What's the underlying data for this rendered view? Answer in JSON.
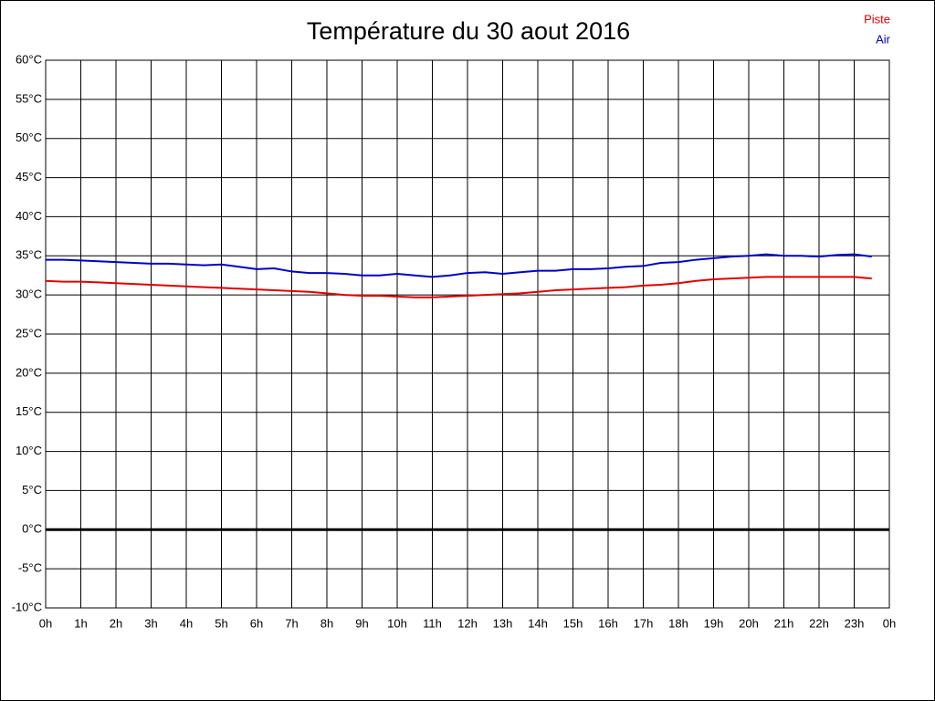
{
  "chart_data": {
    "type": "line",
    "title": "Température du 30 aout 2016",
    "x": [
      0,
      0.5,
      1,
      1.5,
      2,
      2.5,
      3,
      3.5,
      4,
      4.5,
      5,
      5.5,
      6,
      6.5,
      7,
      7.5,
      8,
      8.5,
      9,
      9.5,
      10,
      10.5,
      11,
      11.5,
      12,
      12.5,
      13,
      13.5,
      14,
      14.5,
      15,
      15.5,
      16,
      16.5,
      17,
      17.5,
      18,
      18.5,
      19,
      19.5,
      20,
      20.5,
      21,
      21.5,
      22,
      22.5,
      23,
      23.5
    ],
    "series": [
      {
        "name": "Piste",
        "color": "#e00000",
        "values": [
          31.8,
          31.7,
          31.7,
          31.6,
          31.5,
          31.4,
          31.3,
          31.2,
          31.1,
          31.0,
          30.9,
          30.8,
          30.7,
          30.6,
          30.5,
          30.4,
          30.2,
          30.0,
          29.9,
          29.9,
          29.8,
          29.7,
          29.7,
          29.8,
          29.9,
          30.0,
          30.1,
          30.2,
          30.4,
          30.6,
          30.7,
          30.8,
          30.9,
          31.0,
          31.2,
          31.3,
          31.5,
          31.8,
          32.0,
          32.1,
          32.2,
          32.3,
          32.3,
          32.3,
          32.3,
          32.3,
          32.3,
          32.1
        ]
      },
      {
        "name": "Air",
        "color": "#0000c8",
        "values": [
          34.5,
          34.5,
          34.4,
          34.3,
          34.2,
          34.1,
          34.0,
          34.0,
          33.9,
          33.8,
          33.9,
          33.6,
          33.3,
          33.4,
          33.0,
          32.8,
          32.8,
          32.7,
          32.5,
          32.5,
          32.7,
          32.5,
          32.3,
          32.5,
          32.8,
          32.9,
          32.7,
          32.9,
          33.1,
          33.1,
          33.3,
          33.3,
          33.4,
          33.6,
          33.7,
          34.1,
          34.2,
          34.5,
          34.7,
          34.9,
          35.0,
          35.2,
          35.0,
          35.0,
          34.9,
          35.1,
          35.2,
          34.9
        ]
      }
    ],
    "xlim": [
      0,
      24
    ],
    "xticks": [
      {
        "value": 0,
        "label": "0h"
      },
      {
        "value": 1,
        "label": "1h"
      },
      {
        "value": 2,
        "label": "2h"
      },
      {
        "value": 3,
        "label": "3h"
      },
      {
        "value": 4,
        "label": "4h"
      },
      {
        "value": 5,
        "label": "5h"
      },
      {
        "value": 6,
        "label": "6h"
      },
      {
        "value": 7,
        "label": "7h"
      },
      {
        "value": 8,
        "label": "8h"
      },
      {
        "value": 9,
        "label": "9h"
      },
      {
        "value": 10,
        "label": "10h"
      },
      {
        "value": 11,
        "label": "11h"
      },
      {
        "value": 12,
        "label": "12h"
      },
      {
        "value": 13,
        "label": "13h"
      },
      {
        "value": 14,
        "label": "14h"
      },
      {
        "value": 15,
        "label": "15h"
      },
      {
        "value": 16,
        "label": "16h"
      },
      {
        "value": 17,
        "label": "17h"
      },
      {
        "value": 18,
        "label": "18h"
      },
      {
        "value": 19,
        "label": "19h"
      },
      {
        "value": 20,
        "label": "20h"
      },
      {
        "value": 21,
        "label": "21h"
      },
      {
        "value": 22,
        "label": "22h"
      },
      {
        "value": 23,
        "label": "23h"
      },
      {
        "value": 24,
        "label": "0h"
      }
    ],
    "ylim": [
      -10,
      60
    ],
    "yticks": [
      {
        "value": -10,
        "label": "-10°C"
      },
      {
        "value": -5,
        "label": "-5°C"
      },
      {
        "value": 0,
        "label": "0°C"
      },
      {
        "value": 5,
        "label": "5°C"
      },
      {
        "value": 10,
        "label": "10°C"
      },
      {
        "value": 15,
        "label": "15°C"
      },
      {
        "value": 20,
        "label": "20°C"
      },
      {
        "value": 25,
        "label": "25°C"
      },
      {
        "value": 30,
        "label": "30°C"
      },
      {
        "value": 35,
        "label": "35°C"
      },
      {
        "value": 40,
        "label": "40°C"
      },
      {
        "value": 45,
        "label": "45°C"
      },
      {
        "value": 50,
        "label": "50°C"
      },
      {
        "value": 55,
        "label": "55°C"
      },
      {
        "value": 60,
        "label": "60°C"
      }
    ],
    "grid": true,
    "zero_line": true,
    "legend": "top-right"
  }
}
